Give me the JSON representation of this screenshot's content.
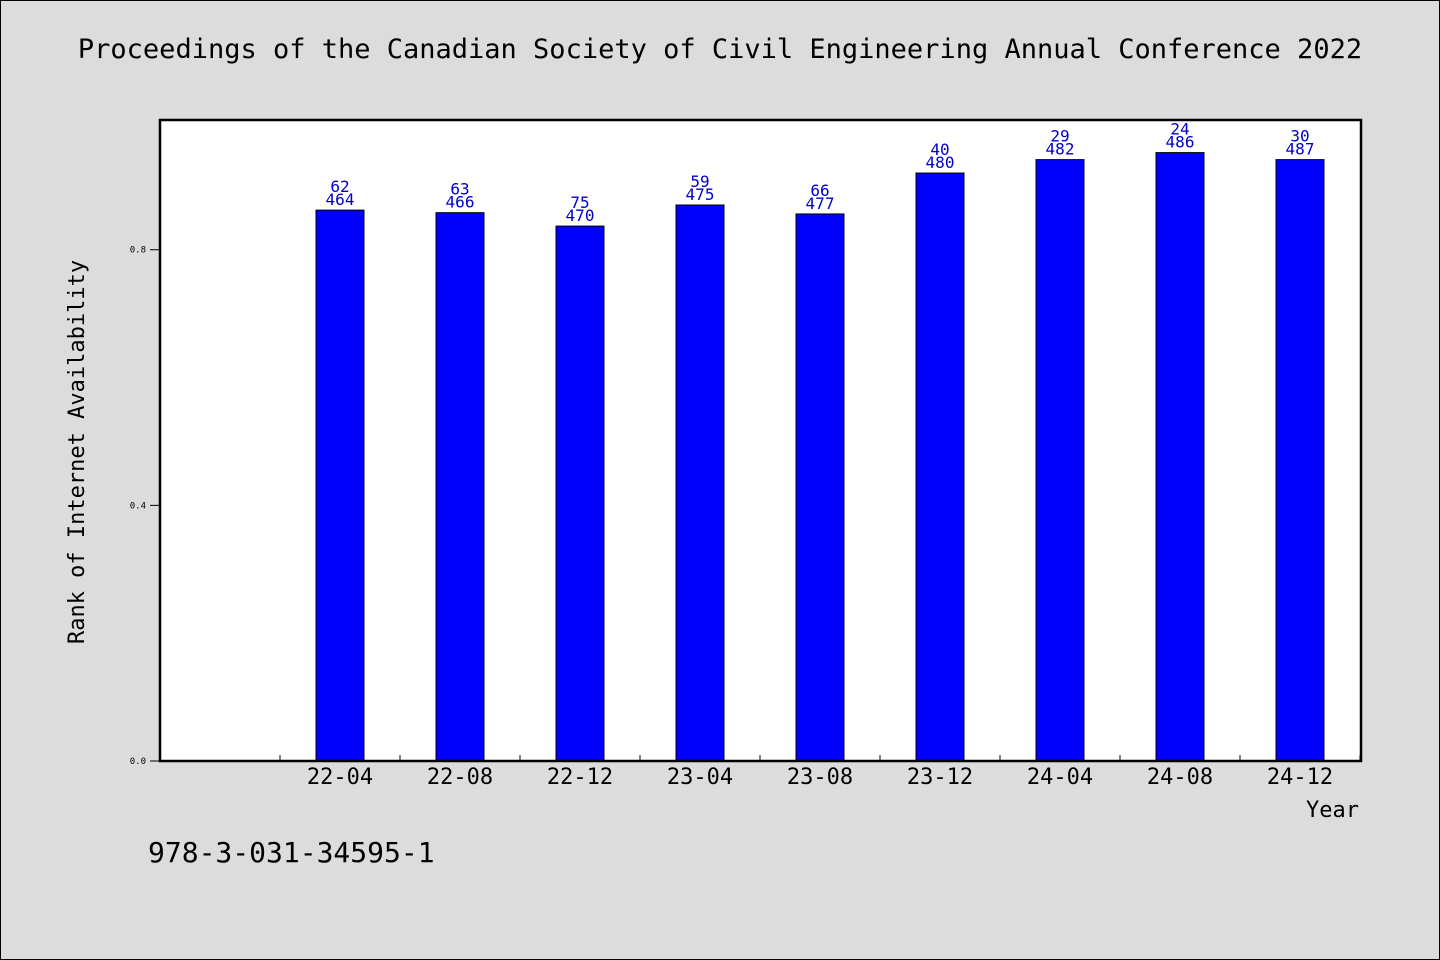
{
  "chart_data": {
    "type": "bar",
    "title": "Proceedings of the Canadian Society of Civil Engineering Annual Conference 2022",
    "xlabel": "Year",
    "ylabel": "Rank of Internet Availability",
    "categories": [
      "22-04",
      "22-08",
      "22-12",
      "23-04",
      "23-08",
      "23-12",
      "24-04",
      "24-08",
      "24-12"
    ],
    "values": [
      0.862,
      0.858,
      0.837,
      0.87,
      0.856,
      0.92,
      0.941,
      0.952,
      0.941
    ],
    "bar_labels_top": [
      "62",
      "63",
      "75",
      "59",
      "66",
      "40",
      "29",
      "24",
      "30"
    ],
    "bar_labels_bottom": [
      "464",
      "466",
      "470",
      "475",
      "477",
      "480",
      "482",
      "486",
      "487"
    ],
    "yticks": [
      "0.0",
      "0.4",
      "0.8"
    ],
    "ylim": [
      0,
      1.003
    ],
    "grid": false,
    "bar_color": "#0000ff",
    "label_color": "#0000cc"
  },
  "footer": {
    "isbn": "978-3-031-34595-1"
  }
}
